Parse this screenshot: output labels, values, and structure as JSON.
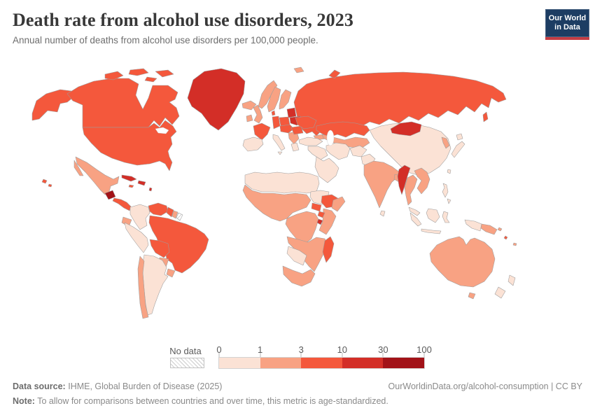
{
  "header": {
    "title": "Death rate from alcohol use disorders, 2023",
    "subtitle": "Annual number of deaths from alcohol use disorders per 100,000 people."
  },
  "logo": {
    "line1": "Our World",
    "line2": "in Data",
    "bg_color": "#1d3d63",
    "bar_color": "#c43c43"
  },
  "legend": {
    "no_data_label": "No data",
    "tick_labels": [
      "0",
      "1",
      "3",
      "10",
      "30",
      "100"
    ],
    "bins": [
      {
        "range": "0-1",
        "color": "#fbe2d5"
      },
      {
        "range": "1-3",
        "color": "#f8a283"
      },
      {
        "range": "3-10",
        "color": "#f4583c"
      },
      {
        "range": "10-30",
        "color": "#d32e27"
      },
      {
        "range": "30-100",
        "color": "#a21218"
      }
    ]
  },
  "footer": {
    "source_label": "Data source:",
    "source_text": "IHME, Global Burden of Disease (2025)",
    "link_text": "OurWorldinData.org/alcohol-consumption | CC BY",
    "note_label": "Note:",
    "note_text": "To allow for comparisons between countries and over time, this metric is age-standardized."
  },
  "chart_data": {
    "type": "choropleth-map",
    "title": "Death rate from alcohol use disorders, 2023",
    "unit": "deaths per 100,000 people (age-standardized)",
    "bin_edges": [
      0,
      1,
      3,
      10,
      30,
      100
    ],
    "legend_position": "bottom",
    "regions": {
      "alaska": "3-10",
      "canada": "3-10",
      "arctic-islands-1": "3-10",
      "arctic-islands-2": "3-10",
      "arctic-islands-3": "3-10",
      "arctic-islands-4": "3-10",
      "greenland": "10-30",
      "usa": "3-10",
      "hawaii-1": "3-10",
      "hawaii-2": "3-10",
      "mexico": "1-3",
      "baja-california": "1-3",
      "guatemala": "30-100",
      "central-america": "3-10",
      "cuba": "10-30",
      "hispaniola": "10-30",
      "jamaica": "3-10",
      "lesser-antilles": "10-30",
      "colombia": "0-1",
      "venezuela": "3-10",
      "guyana": "3-10",
      "suriname": "1-3",
      "french-guiana": "no-data",
      "brazil": "3-10",
      "ecuador": "1-3",
      "peru": "0-1",
      "bolivia": "3-10",
      "paraguay": "1-3",
      "uruguay": "1-3",
      "argentina": "0-1",
      "chile": "1-3",
      "iceland": "1-3",
      "svalbard": "1-3",
      "norway": "1-3",
      "sweden": "1-3",
      "finland": "1-3",
      "denmark": "3-10",
      "uk": "1-3",
      "ireland": "1-3",
      "baltics": "10-30",
      "belarus": "10-30",
      "poland": "3-10",
      "germany": "3-10",
      "france": "3-10",
      "iberia": "0-1",
      "italy": "0-1",
      "sicily": "0-1",
      "central-europe": "3-10",
      "balkans": "1-3",
      "greece": "0-1",
      "romania": "3-10",
      "ukraine": "3-10",
      "russia": "3-10",
      "novaya-zemlya": "3-10",
      "sakhalin": "3-10",
      "caucasus": "1-3",
      "kazakhstan": "3-10",
      "central-asia": "1-3",
      "turkey": "0-1",
      "levant-iraq": "0-1",
      "saudi-peninsula": "0-1",
      "iran": "0-1",
      "afghanistan": "0-1",
      "pakistan": "0-1",
      "india": "1-3",
      "bangladesh": "1-3",
      "sri-lanka": "0-1",
      "china": "0-1",
      "mongolia": "10-30",
      "korea": "1-3",
      "japan-hokkaido": "0-1",
      "japan-honshu": "0-1",
      "taiwan": "0-1",
      "myanmar": "10-30",
      "thailand": "1-3",
      "indochina": "1-3",
      "malaysia": "0-1",
      "sumatra": "0-1",
      "java": "0-1",
      "borneo": "0-1",
      "sulawesi": "0-1",
      "philippines-1": "0-1",
      "philippines-2": "0-1",
      "west-new-guinea": "0-1",
      "papua-new-guinea": "1-3",
      "solomon-islands": "1-3",
      "vanuatu": "3-10",
      "fiji": "1-3",
      "north-africa": "0-1",
      "west-africa": "1-3",
      "sudan": "0-1",
      "south-sudan": "3-10",
      "ethiopia": "3-10",
      "somalia": "1-3",
      "uganda": "3-10",
      "rwanda-burundi": "10-30",
      "central-africa": "1-3",
      "east-africa": "1-3",
      "southern-africa": "1-3",
      "namibia-botswana": "0-1",
      "south-africa": "1-3",
      "madagascar": "3-10",
      "australia": "1-3",
      "tasmania": "1-3",
      "new-zealand-north": "0-1",
      "new-zealand-south": "0-1"
    }
  }
}
